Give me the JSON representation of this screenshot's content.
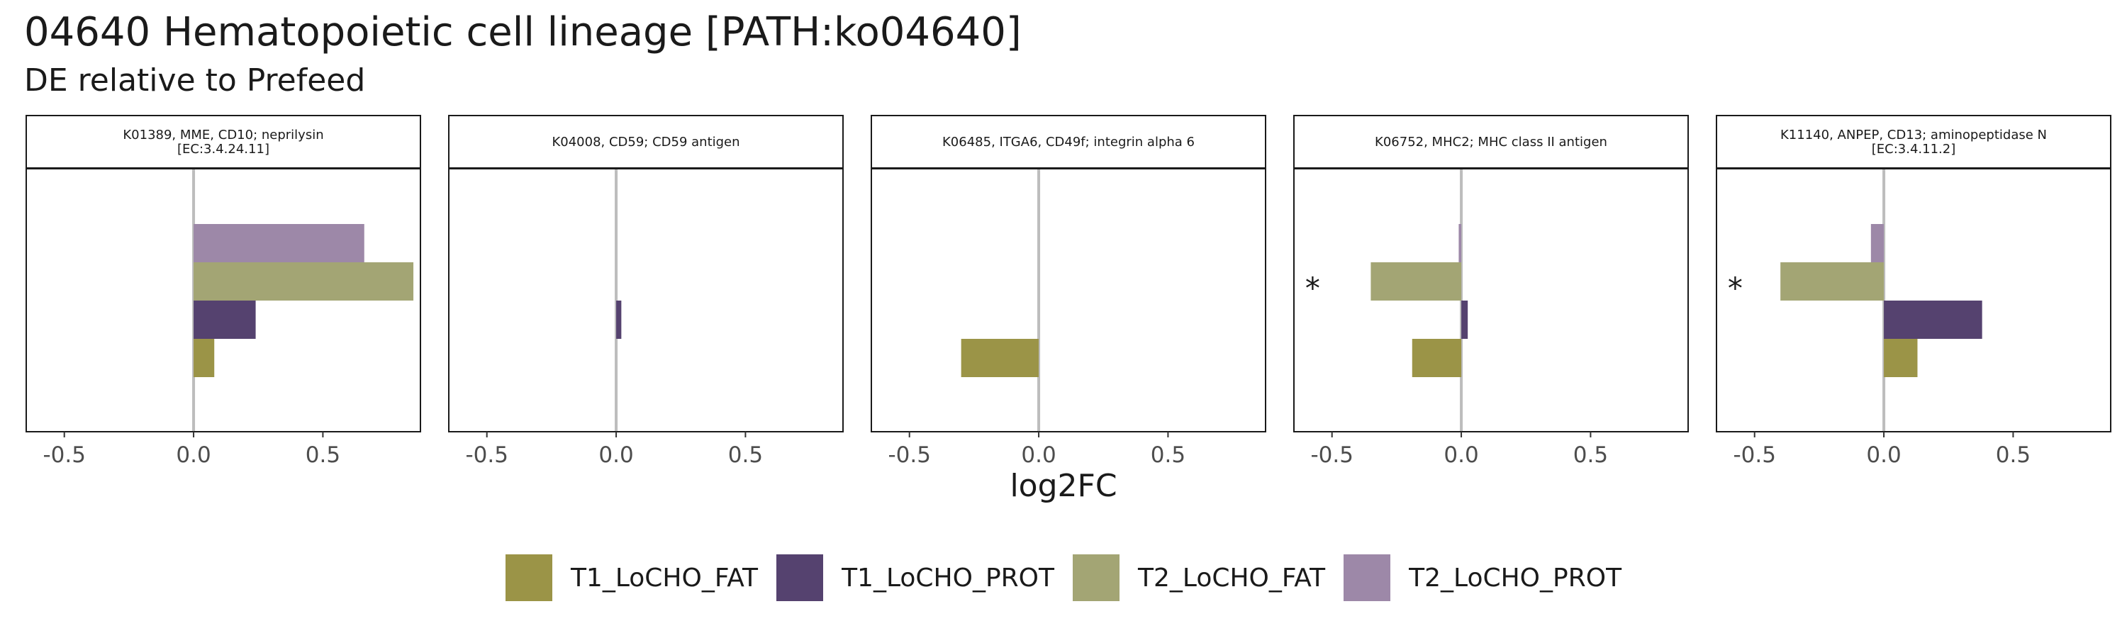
{
  "title": "04640 Hematopoietic cell lineage [PATH:ko04640]",
  "subtitle": "DE relative to Prefeed",
  "chart_data": {
    "type": "bar",
    "orientation": "horizontal",
    "xlabel": "log2FC",
    "xlim": [
      -0.65,
      0.88
    ],
    "x_ticks": [
      -0.5,
      0.0,
      0.5
    ],
    "x_tick_labels": [
      "-0.5",
      "0.0",
      "0.5"
    ],
    "grid": false,
    "legend_position": "bottom",
    "series_order": [
      "T1_LoCHO_FAT",
      "T1_LoCHO_PROT",
      "T2_LoCHO_FAT",
      "T2_LoCHO_PROT"
    ],
    "colors": {
      "T1_LoCHO_FAT": "#9b9447",
      "T1_LoCHO_PROT": "#55426f",
      "T2_LoCHO_FAT": "#a3a574",
      "T2_LoCHO_PROT": "#9d88a8"
    },
    "zero_line_color": "#bdbdbd",
    "significance_symbol": "*",
    "panels": [
      {
        "strip_lines": [
          "K01389, MME, CD10; neprilysin",
          "[EC:3.4.24.11]"
        ],
        "values": {
          "T1_LoCHO_FAT": 0.08,
          "T1_LoCHO_PROT": 0.24,
          "T2_LoCHO_FAT": 0.85,
          "T2_LoCHO_PROT": 0.66
        },
        "significant": []
      },
      {
        "strip_lines": [
          "K04008, CD59; CD59 antigen"
        ],
        "values": {
          "T1_LoCHO_FAT": null,
          "T1_LoCHO_PROT": 0.02,
          "T2_LoCHO_FAT": null,
          "T2_LoCHO_PROT": null
        },
        "significant": []
      },
      {
        "strip_lines": [
          "K06485, ITGA6, CD49f; integrin alpha 6"
        ],
        "values": {
          "T1_LoCHO_FAT": -0.3,
          "T1_LoCHO_PROT": null,
          "T2_LoCHO_FAT": null,
          "T2_LoCHO_PROT": null
        },
        "significant": []
      },
      {
        "strip_lines": [
          "K06752, MHC2; MHC class II antigen"
        ],
        "values": {
          "T1_LoCHO_FAT": -0.19,
          "T1_LoCHO_PROT": 0.025,
          "T2_LoCHO_FAT": -0.35,
          "T2_LoCHO_PROT": -0.01
        },
        "significant": [
          "T2_LoCHO_FAT"
        ]
      },
      {
        "strip_lines": [
          "K11140, ANPEP, CD13; aminopeptidase N",
          "[EC:3.4.11.2]"
        ],
        "values": {
          "T1_LoCHO_FAT": 0.13,
          "T1_LoCHO_PROT": 0.38,
          "T2_LoCHO_FAT": -0.4,
          "T2_LoCHO_PROT": -0.05
        },
        "significant": [
          "T2_LoCHO_FAT"
        ]
      }
    ]
  }
}
